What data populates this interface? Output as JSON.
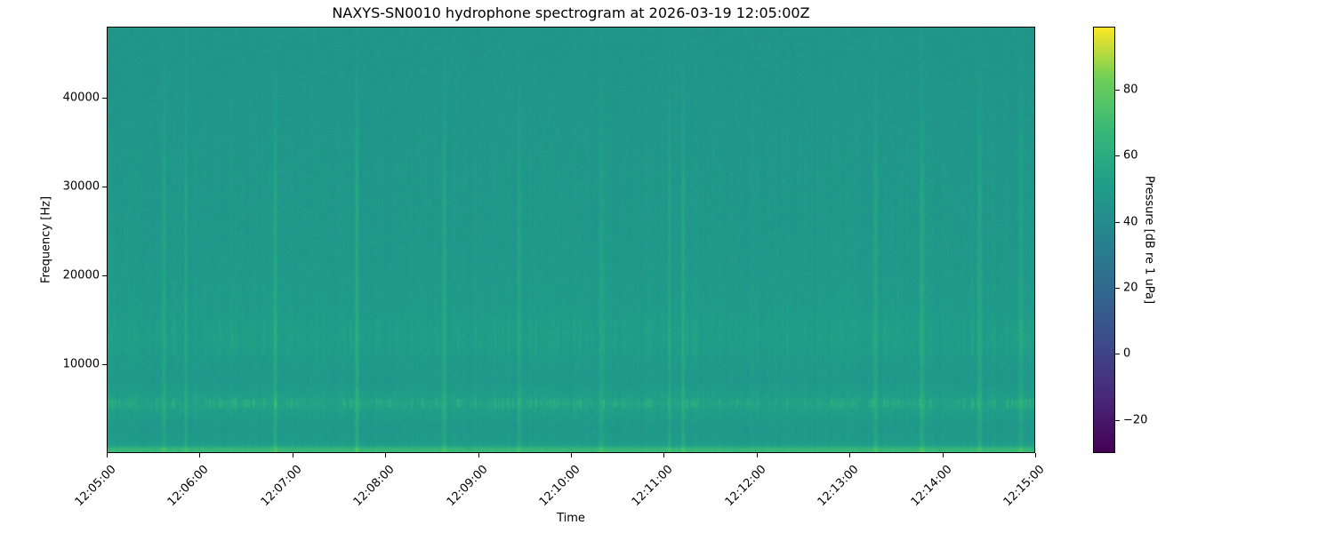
{
  "chart_data": {
    "type": "heatmap",
    "title": "NAXYS-SN0010 hydrophone spectrogram at 2026-03-19 12:05:00Z",
    "xlabel": "Time",
    "ylabel": "Frequency [Hz]",
    "xlim": [
      "12:05:00",
      "12:15:00"
    ],
    "ylim": [
      0,
      48000
    ],
    "x_ticks": [
      "12:05:00",
      "12:06:00",
      "12:07:00",
      "12:08:00",
      "12:09:00",
      "12:10:00",
      "12:11:00",
      "12:12:00",
      "12:13:00",
      "12:14:00",
      "12:15:00"
    ],
    "y_ticks": [
      10000,
      20000,
      30000,
      40000
    ],
    "colormap": "viridis",
    "colorbar": {
      "label": "Pressure [dB re 1 uPa]",
      "range": [
        -30,
        99
      ],
      "ticks": [
        -20,
        0,
        20,
        40,
        60,
        80
      ]
    },
    "background_level_db": 47,
    "frequency_profile": {
      "frequency_hz": [
        200,
        1000,
        3000,
        5500,
        8000,
        13000,
        18000,
        25000,
        35000,
        45000
      ],
      "level_db": [
        62,
        50,
        48,
        54,
        48,
        51,
        49,
        48,
        47,
        46
      ]
    },
    "transient_times": [
      "12:05:36",
      "12:05:50",
      "12:06:48",
      "12:07:41",
      "12:08:37",
      "12:09:26",
      "12:10:19",
      "12:11:03",
      "12:11:12",
      "12:13:17",
      "12:13:47",
      "12:14:24",
      "12:14:51"
    ],
    "tonal_band_hz": [
      5000,
      6000
    ]
  }
}
